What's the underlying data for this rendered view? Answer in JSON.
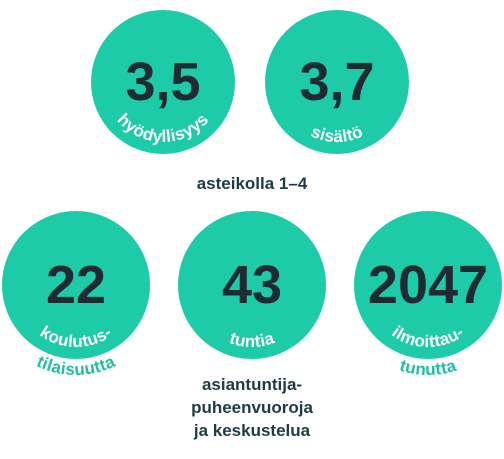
{
  "top": {
    "items": [
      {
        "value": "3,5",
        "label_inner": "hyödyllisyys"
      },
      {
        "value": "3,7",
        "label_inner": "sisältö"
      }
    ],
    "caption": "asteikolla 1–4"
  },
  "bottom": {
    "items": [
      {
        "value": "22",
        "label_inner": "koulutus-",
        "label_outer": "tilaisuutta"
      },
      {
        "value": "43",
        "label_inner": "tuntia",
        "caption": [
          "asiantuntija-",
          "puheenvuoroja",
          "ja keskustelua"
        ]
      },
      {
        "value": "2047",
        "label_inner": "ilmoittau-",
        "label_outer": "tunutta"
      }
    ]
  }
}
